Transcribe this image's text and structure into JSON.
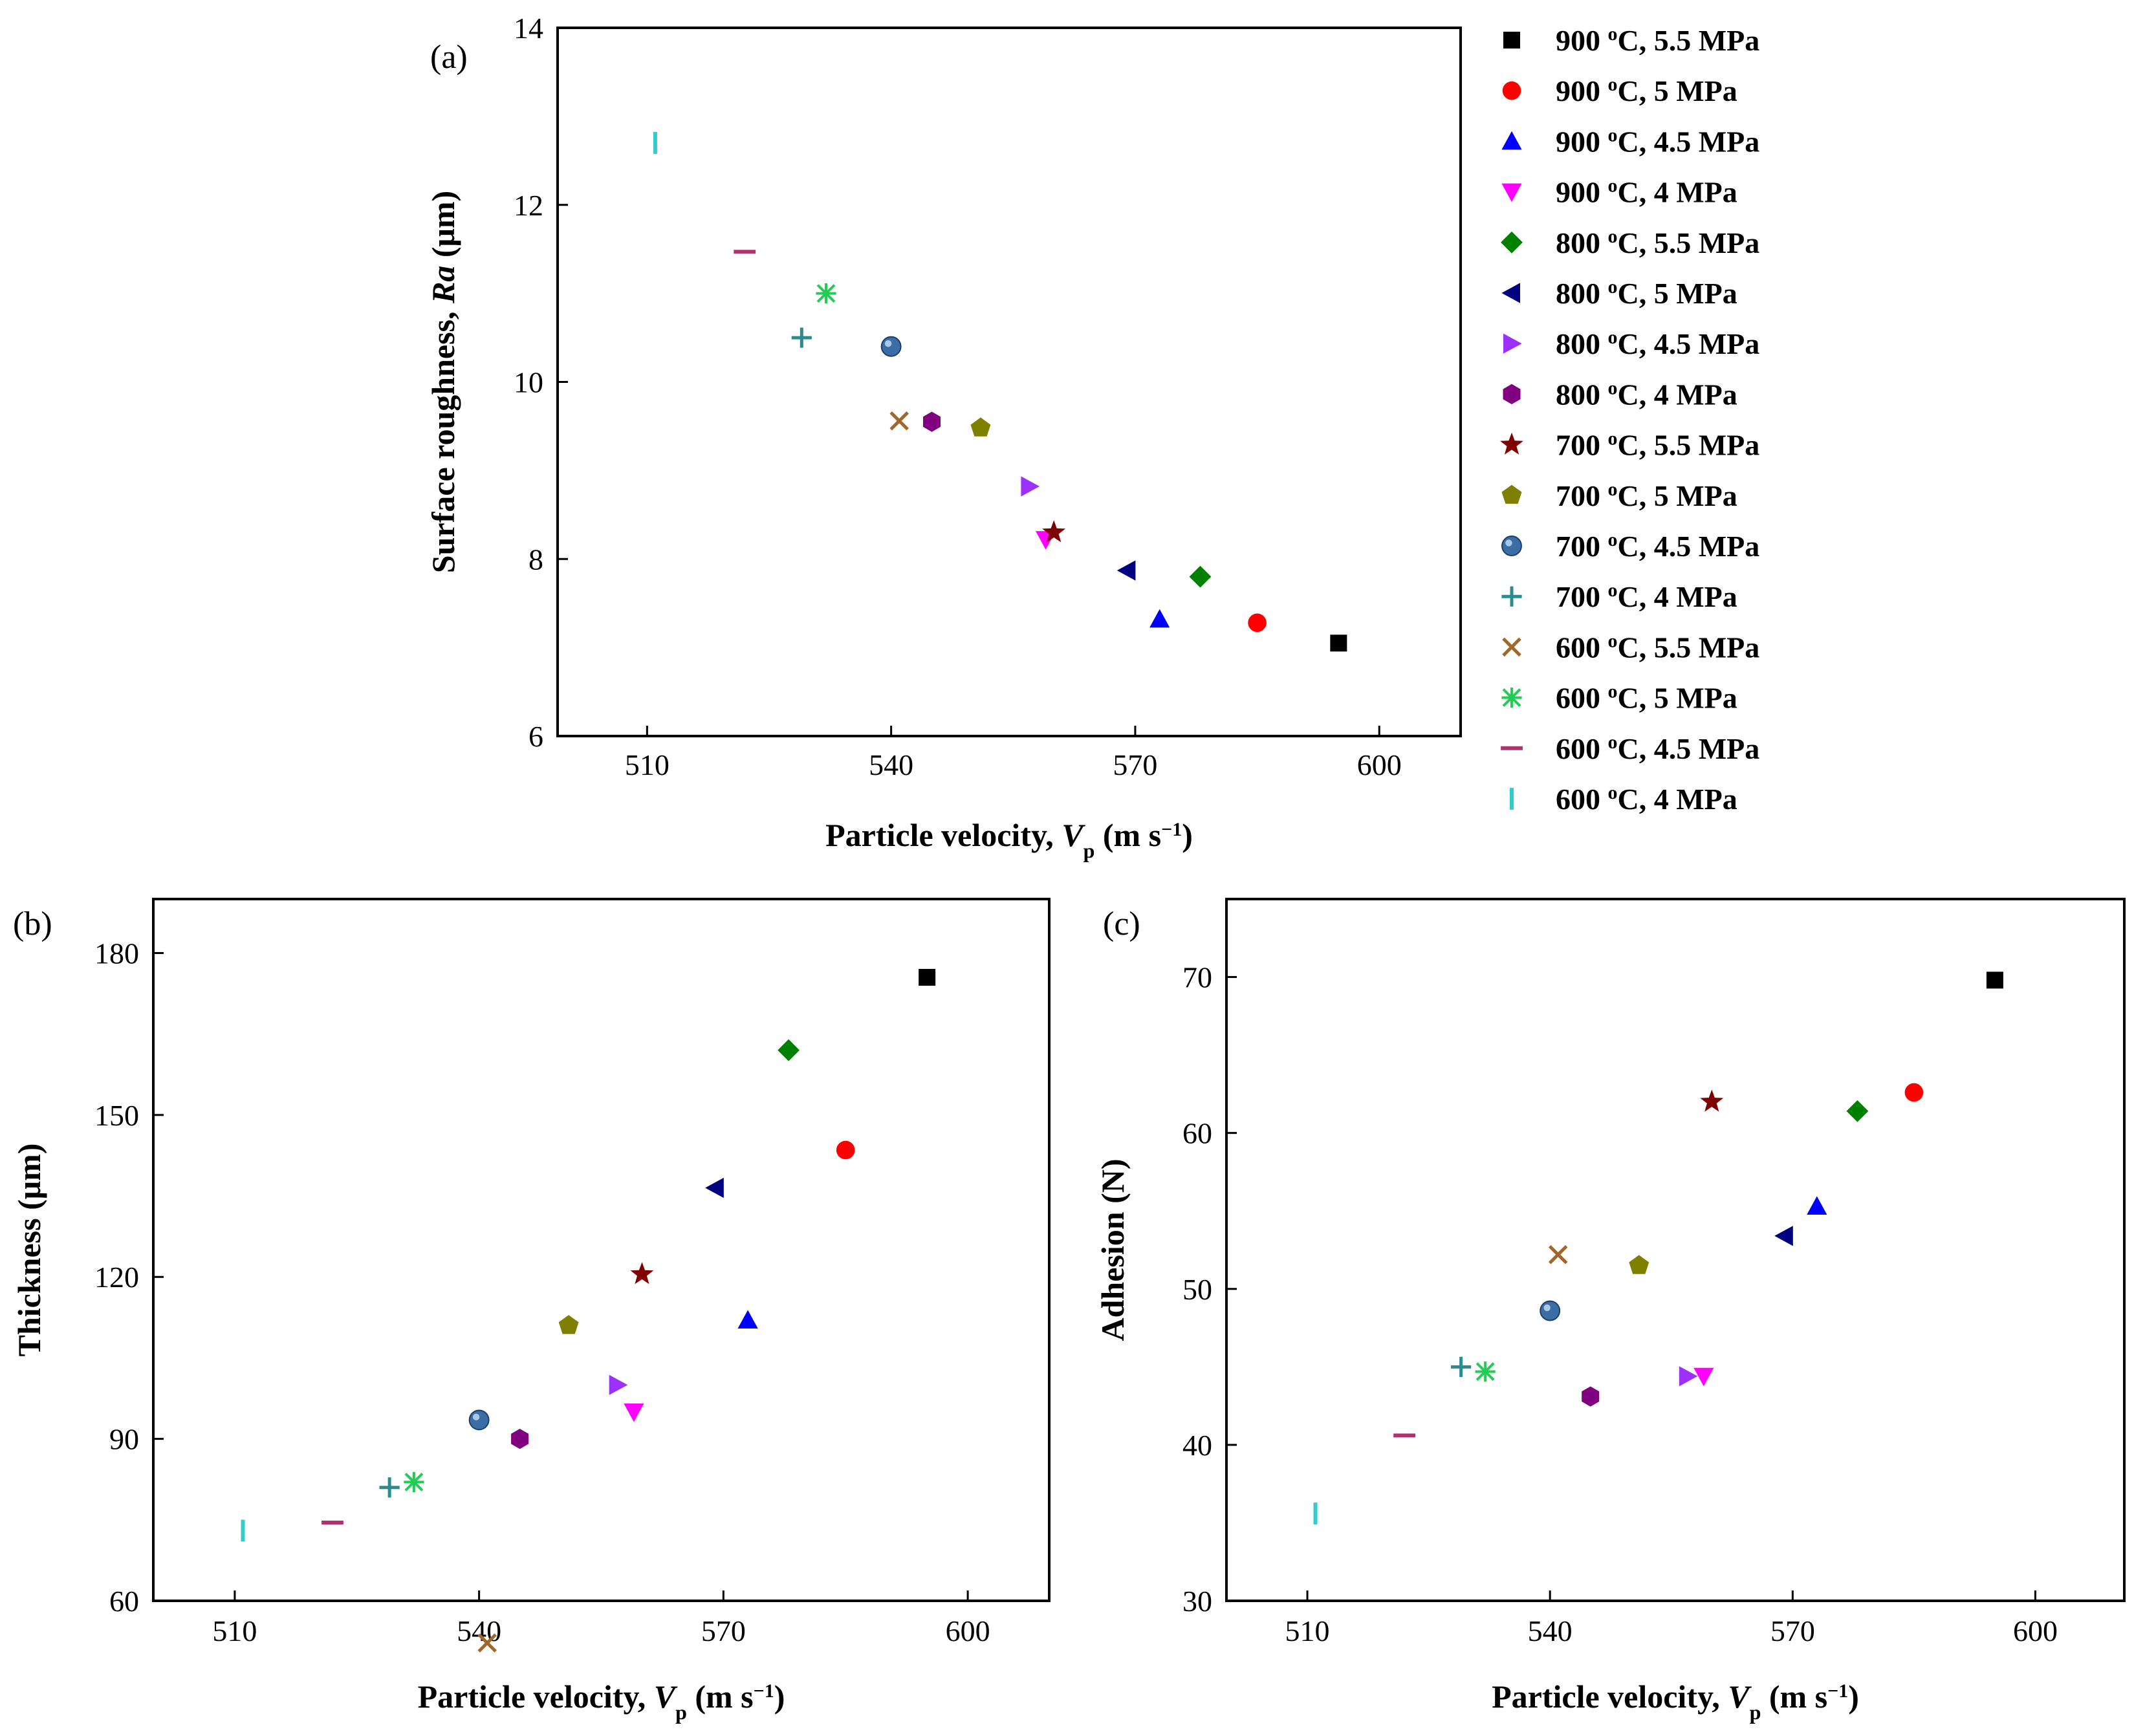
{
  "legend": {
    "series": [
      {
        "name": "900 oC, 5.5 MPa",
        "temp": "900",
        "deg": "o",
        "rest": "C, 5.5 MPa",
        "marker": "square",
        "color": "#000000"
      },
      {
        "name": "900 oC, 5 MPa",
        "temp": "900",
        "deg": "o",
        "rest": "C, 5 MPa",
        "marker": "circle",
        "color": "#ff0000"
      },
      {
        "name": "900 oC, 4.5 MPa",
        "temp": "900",
        "deg": "o",
        "rest": "C, 4.5 MPa",
        "marker": "triangle-up",
        "color": "#0000ff"
      },
      {
        "name": "900 oC, 4 MPa",
        "temp": "900",
        "deg": "o",
        "rest": "C, 4 MPa",
        "marker": "triangle-down",
        "color": "#ff00ff"
      },
      {
        "name": "800 oC, 5.5 MPa",
        "temp": "800",
        "deg": "o",
        "rest": "C, 5.5 MPa",
        "marker": "diamond",
        "color": "#008000"
      },
      {
        "name": "800 oC, 5 MPa",
        "temp": "800",
        "deg": "o",
        "rest": "C, 5 MPa",
        "marker": "triangle-left",
        "color": "#000080"
      },
      {
        "name": "800 oC, 4.5 MPa",
        "temp": "800",
        "deg": "o",
        "rest": "C, 4.5 MPa",
        "marker": "triangle-right",
        "color": "#9b30ff"
      },
      {
        "name": "800 oC, 4 MPa",
        "temp": "800",
        "deg": "o",
        "rest": "C, 4 MPa",
        "marker": "hexagon",
        "color": "#800080"
      },
      {
        "name": "700 oC, 5.5 MPa",
        "temp": "700",
        "deg": "o",
        "rest": "C, 5.5 MPa",
        "marker": "star",
        "color": "#800000"
      },
      {
        "name": "700 oC, 5 MPa",
        "temp": "700",
        "deg": "o",
        "rest": "C, 5 MPa",
        "marker": "pentagon",
        "color": "#808000"
      },
      {
        "name": "700 oC, 4.5 MPa",
        "temp": "700",
        "deg": "o",
        "rest": "C, 4.5 MPa",
        "marker": "sphere",
        "color": "#3a6ea5"
      },
      {
        "name": "700 oC, 4 MPa",
        "temp": "700",
        "deg": "o",
        "rest": "C, 4 MPa",
        "marker": "plus",
        "color": "#2a8c8c"
      },
      {
        "name": "600 oC, 5.5 MPa",
        "temp": "600",
        "deg": "o",
        "rest": "C, 5.5 MPa",
        "marker": "x",
        "color": "#a0662a"
      },
      {
        "name": "600 oC, 5 MPa",
        "temp": "600",
        "deg": "o",
        "rest": "C, 5 MPa",
        "marker": "asterisk",
        "color": "#22cc55"
      },
      {
        "name": "600 oC, 4.5 MPa",
        "temp": "600",
        "deg": "o",
        "rest": "C, 4.5 MPa",
        "marker": "hbar",
        "color": "#b03070"
      },
      {
        "name": "600 oC, 4 MPa",
        "temp": "600",
        "deg": "o",
        "rest": "C, 4 MPa",
        "marker": "vbar",
        "color": "#33cccc"
      }
    ]
  },
  "chart_data": [
    {
      "type": "scatter",
      "panel_label": "(a)",
      "xlabel": {
        "main": "Particle velocity, ",
        "italic": "V",
        "sub": "p",
        "units": " (m s",
        "sup": "−1",
        "close": ")"
      },
      "ylabel": {
        "main": "Surface roughness, ",
        "italic": "Ra",
        "units": " (μm)"
      },
      "xlim": [
        499,
        610
      ],
      "ylim": [
        6,
        14
      ],
      "xticks": [
        510,
        540,
        570,
        600
      ],
      "yticks": [
        6,
        8,
        10,
        12,
        14
      ],
      "x": [
        595,
        585,
        573,
        559,
        578,
        569,
        557,
        545,
        560,
        551,
        540,
        529,
        541,
        532,
        522,
        511
      ],
      "y": [
        7.05,
        7.28,
        7.32,
        8.22,
        7.8,
        7.87,
        8.82,
        9.55,
        8.3,
        9.48,
        10.4,
        10.5,
        9.56,
        11.0,
        11.47,
        12.7
      ]
    },
    {
      "type": "scatter",
      "panel_label": "(b)",
      "xlabel": {
        "main": "Particle velocity, ",
        "italic": "V",
        "sub": "p",
        "units": " (m s",
        "sup": "−1",
        "close": ")"
      },
      "ylabel": {
        "main": "Thickness (μm)",
        "italic": "",
        "units": ""
      },
      "xlim": [
        500,
        610
      ],
      "ylim": [
        60,
        190
      ],
      "xticks": [
        510,
        540,
        570,
        600
      ],
      "yticks": [
        60,
        90,
        120,
        150,
        180
      ],
      "x": [
        595,
        585,
        573,
        559,
        578,
        569,
        557,
        545,
        560,
        551,
        540,
        529,
        541,
        532,
        522,
        511
      ],
      "y": [
        175.5,
        143.5,
        112,
        95,
        162,
        136.5,
        100,
        90,
        120.5,
        111,
        93.5,
        81,
        52.2,
        82,
        74.5,
        73
      ]
    },
    {
      "type": "scatter",
      "panel_label": "(c)",
      "xlabel": {
        "main": "Particle velocity, ",
        "italic": "V",
        "sub": "p",
        "units": " (m s",
        "sup": "−1",
        "close": ")"
      },
      "ylabel": {
        "main": "Adhesion (N)",
        "italic": "",
        "units": ""
      },
      "xlim": [
        500,
        611
      ],
      "ylim": [
        30,
        75
      ],
      "xticks": [
        510,
        540,
        570,
        600
      ],
      "yticks": [
        30,
        40,
        50,
        60,
        70
      ],
      "x": [
        595,
        585,
        573,
        559,
        578,
        569,
        557,
        545,
        560,
        551,
        540,
        529,
        541,
        532,
        522,
        511
      ],
      "y": [
        69.8,
        62.6,
        55.3,
        44.4,
        61.4,
        53.4,
        44.4,
        43.1,
        62,
        51.5,
        48.6,
        45,
        52.2,
        44.7,
        40.6,
        35.6
      ]
    }
  ]
}
